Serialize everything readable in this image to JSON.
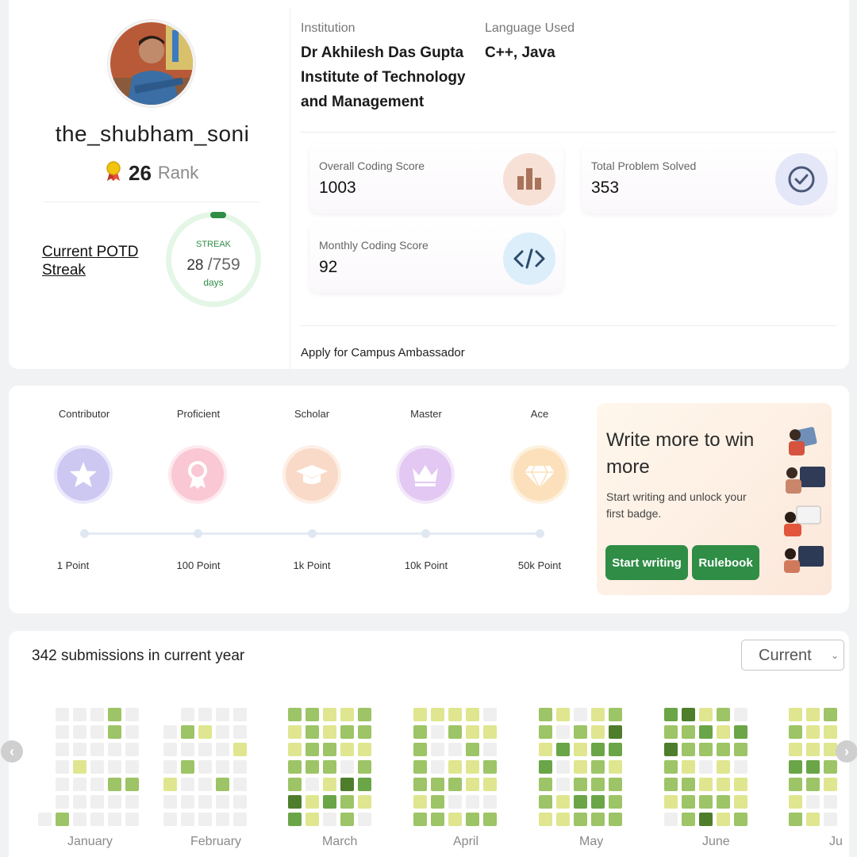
{
  "profile": {
    "username": "the_shubham_soni",
    "rank_value": "26",
    "rank_label": "Rank",
    "potd_link": "Current POTD Streak",
    "streak_label": "STREAK",
    "streak_current": "28",
    "streak_total": "/759",
    "streak_unit": "days",
    "streak_progress": 0.037
  },
  "info": {
    "institution_label": "Institution",
    "institution_lines": [
      "Dr Akhilesh Das Gupta",
      "Institute of Technology",
      "and Management"
    ],
    "language_label": "Language Used",
    "language_value": "C++, Java"
  },
  "scores": [
    {
      "label": "Overall Coding Score",
      "value": "1003",
      "icon": "bar-chart-icon"
    },
    {
      "label": "Total Problem Solved",
      "value": "353",
      "icon": "check-circle-icon"
    },
    {
      "label": "Monthly Coding Score",
      "value": "92",
      "icon": "code-icon"
    }
  ],
  "ambassador_link": "Apply for Campus Ambassador",
  "badges": [
    {
      "name": "Contributor",
      "points": "1 Point",
      "icon": "star-icon",
      "color": "#c9c5f0"
    },
    {
      "name": "Proficient",
      "points": "100 Point",
      "icon": "ribbon-icon",
      "color": "#f7c9d4"
    },
    {
      "name": "Scholar",
      "points": "1k Point",
      "icon": "graduation-cap-icon",
      "color": "#f8d9c6"
    },
    {
      "name": "Master",
      "points": "10k Point",
      "icon": "crown-icon",
      "color": "#e2c8f1"
    },
    {
      "name": "Ace",
      "points": "50k Point",
      "icon": "diamond-icon",
      "color": "#fbe2bd"
    }
  ],
  "promo": {
    "title": "Write more to win more",
    "subtitle": "Start writing and unlock your first badge.",
    "primary_button": "Start writing",
    "secondary_button": "Rulebook"
  },
  "submissions": {
    "title": "342 submissions in current year",
    "year_select": "Current",
    "months": [
      "January",
      "February",
      "March",
      "April",
      "May",
      "June",
      "Ju"
    ]
  },
  "colors": {
    "accent_green": "#2f8d46",
    "heat_levels": [
      "#efefef",
      "#dfe68f",
      "#9dc466",
      "#6aa547",
      "#4e7d2c"
    ]
  }
}
